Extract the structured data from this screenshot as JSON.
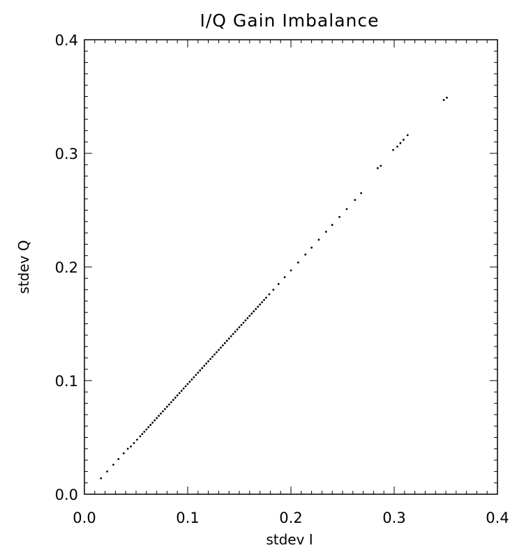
{
  "chart_data": {
    "type": "scatter",
    "title": "I/Q Gain Imbalance",
    "xlabel": "stdev I",
    "ylabel": "stdev Q",
    "xlim": [
      0.0,
      0.4
    ],
    "ylim": [
      0.0,
      0.4
    ],
    "xticks": [
      "0.0",
      "0.1",
      "0.2",
      "0.3",
      "0.4"
    ],
    "yticks": [
      "0.0",
      "0.1",
      "0.2",
      "0.3",
      "0.4"
    ],
    "grid": false,
    "colors": {
      "axis": "#000000",
      "points": "#000000",
      "background": "#ffffff"
    },
    "series": [
      {
        "points": [
          [
            0.016,
            0.014
          ],
          [
            0.022,
            0.02
          ],
          [
            0.028,
            0.026
          ],
          [
            0.033,
            0.031
          ],
          [
            0.038,
            0.036
          ],
          [
            0.042,
            0.04
          ],
          [
            0.045,
            0.042
          ],
          [
            0.048,
            0.045
          ],
          [
            0.051,
            0.048
          ],
          [
            0.054,
            0.051
          ],
          [
            0.056,
            0.053
          ],
          [
            0.058,
            0.055
          ],
          [
            0.06,
            0.057
          ],
          [
            0.062,
            0.059
          ],
          [
            0.064,
            0.061
          ],
          [
            0.066,
            0.063
          ],
          [
            0.068,
            0.065
          ],
          [
            0.07,
            0.067
          ],
          [
            0.072,
            0.069
          ],
          [
            0.074,
            0.071
          ],
          [
            0.076,
            0.073
          ],
          [
            0.078,
            0.075
          ],
          [
            0.08,
            0.077
          ],
          [
            0.082,
            0.079
          ],
          [
            0.084,
            0.081
          ],
          [
            0.086,
            0.083
          ],
          [
            0.088,
            0.085
          ],
          [
            0.09,
            0.087
          ],
          [
            0.092,
            0.089
          ],
          [
            0.094,
            0.091
          ],
          [
            0.096,
            0.093
          ],
          [
            0.098,
            0.095
          ],
          [
            0.1,
            0.097
          ],
          [
            0.102,
            0.099
          ],
          [
            0.104,
            0.101
          ],
          [
            0.106,
            0.103
          ],
          [
            0.108,
            0.105
          ],
          [
            0.11,
            0.107
          ],
          [
            0.112,
            0.109
          ],
          [
            0.114,
            0.111
          ],
          [
            0.116,
            0.113
          ],
          [
            0.118,
            0.115
          ],
          [
            0.12,
            0.117
          ],
          [
            0.122,
            0.119
          ],
          [
            0.124,
            0.121
          ],
          [
            0.126,
            0.123
          ],
          [
            0.128,
            0.125
          ],
          [
            0.13,
            0.127
          ],
          [
            0.132,
            0.129
          ],
          [
            0.134,
            0.131
          ],
          [
            0.136,
            0.133
          ],
          [
            0.138,
            0.135
          ],
          [
            0.14,
            0.137
          ],
          [
            0.142,
            0.139
          ],
          [
            0.144,
            0.141
          ],
          [
            0.146,
            0.143
          ],
          [
            0.148,
            0.145
          ],
          [
            0.15,
            0.147
          ],
          [
            0.152,
            0.149
          ],
          [
            0.154,
            0.151
          ],
          [
            0.156,
            0.153
          ],
          [
            0.158,
            0.155
          ],
          [
            0.16,
            0.157
          ],
          [
            0.162,
            0.159
          ],
          [
            0.164,
            0.161
          ],
          [
            0.166,
            0.163
          ],
          [
            0.168,
            0.165
          ],
          [
            0.17,
            0.167
          ],
          [
            0.172,
            0.169
          ],
          [
            0.174,
            0.171
          ],
          [
            0.176,
            0.173
          ],
          [
            0.179,
            0.176
          ],
          [
            0.183,
            0.18
          ],
          [
            0.188,
            0.185
          ],
          [
            0.194,
            0.191
          ],
          [
            0.2,
            0.197
          ],
          [
            0.207,
            0.204
          ],
          [
            0.214,
            0.211
          ],
          [
            0.22,
            0.217
          ],
          [
            0.227,
            0.224
          ],
          [
            0.234,
            0.231
          ],
          [
            0.24,
            0.237
          ],
          [
            0.247,
            0.244
          ],
          [
            0.254,
            0.251
          ],
          [
            0.262,
            0.259
          ],
          [
            0.268,
            0.265
          ],
          [
            0.284,
            0.287
          ],
          [
            0.287,
            0.289
          ],
          [
            0.299,
            0.303
          ],
          [
            0.303,
            0.306
          ],
          [
            0.306,
            0.309
          ],
          [
            0.309,
            0.312
          ],
          [
            0.313,
            0.316
          ],
          [
            0.348,
            0.347
          ],
          [
            0.351,
            0.349
          ]
        ]
      }
    ]
  }
}
